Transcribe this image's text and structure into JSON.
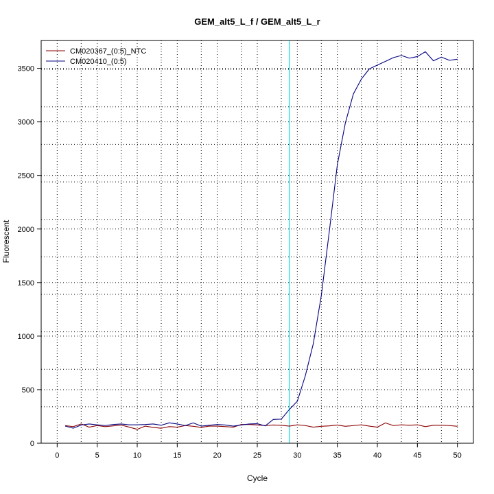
{
  "chart_data": {
    "type": "line",
    "title": "GEM_alt5_L_f / GEM_alt5_L_r",
    "xlabel": "Cycle",
    "ylabel": "Fluorescent",
    "xlim": [
      -2,
      52
    ],
    "ylim": [
      0,
      3760
    ],
    "x_ticks": [
      0,
      5,
      10,
      15,
      20,
      25,
      30,
      35,
      40,
      45,
      50
    ],
    "y_ticks": [
      0,
      500,
      1000,
      1500,
      2000,
      2500,
      3000,
      3500
    ],
    "x_minor_gridlines": [
      3,
      8,
      13,
      18,
      23,
      28,
      33,
      38,
      43,
      48
    ],
    "y_minor_gridlines": [
      340,
      690,
      1040,
      1390,
      1740,
      2090,
      2440,
      2790,
      3140,
      3490
    ],
    "grid": true,
    "legend_position": "top-left",
    "threshold_cycle": 29,
    "threshold_color": "#00e5ee",
    "x": [
      1,
      2,
      3,
      4,
      5,
      6,
      7,
      8,
      9,
      10,
      11,
      12,
      13,
      14,
      15,
      16,
      17,
      18,
      19,
      20,
      21,
      22,
      23,
      24,
      25,
      26,
      27,
      28,
      29,
      30,
      31,
      32,
      33,
      34,
      35,
      36,
      37,
      38,
      39,
      40,
      41,
      42,
      43,
      44,
      45,
      46,
      47,
      48,
      49,
      50
    ],
    "series": [
      {
        "name": "CM020367_(0:5)_NTC",
        "color": "#8b0000",
        "values": [
          165,
          155,
          180,
          150,
          165,
          155,
          162,
          170,
          150,
          130,
          160,
          148,
          140,
          155,
          150,
          165,
          158,
          148,
          160,
          160,
          155,
          150,
          175,
          175,
          170,
          165,
          170,
          168,
          160,
          172,
          165,
          150,
          158,
          162,
          170,
          158,
          165,
          172,
          160,
          150,
          190,
          165,
          172,
          168,
          172,
          155,
          168,
          168,
          165,
          158
        ]
      },
      {
        "name": "CM020410_(0:5)",
        "color": "#000080",
        "values": [
          160,
          140,
          170,
          180,
          172,
          165,
          175,
          180,
          172,
          172,
          175,
          180,
          168,
          190,
          180,
          165,
          190,
          160,
          168,
          175,
          170,
          160,
          170,
          180,
          182,
          162,
          222,
          225,
          315,
          392,
          630,
          930,
          1380,
          1980,
          2600,
          2990,
          3260,
          3400,
          3495,
          3530,
          3565,
          3600,
          3620,
          3595,
          3610,
          3655,
          3570,
          3605,
          3575,
          3585
        ]
      }
    ]
  }
}
